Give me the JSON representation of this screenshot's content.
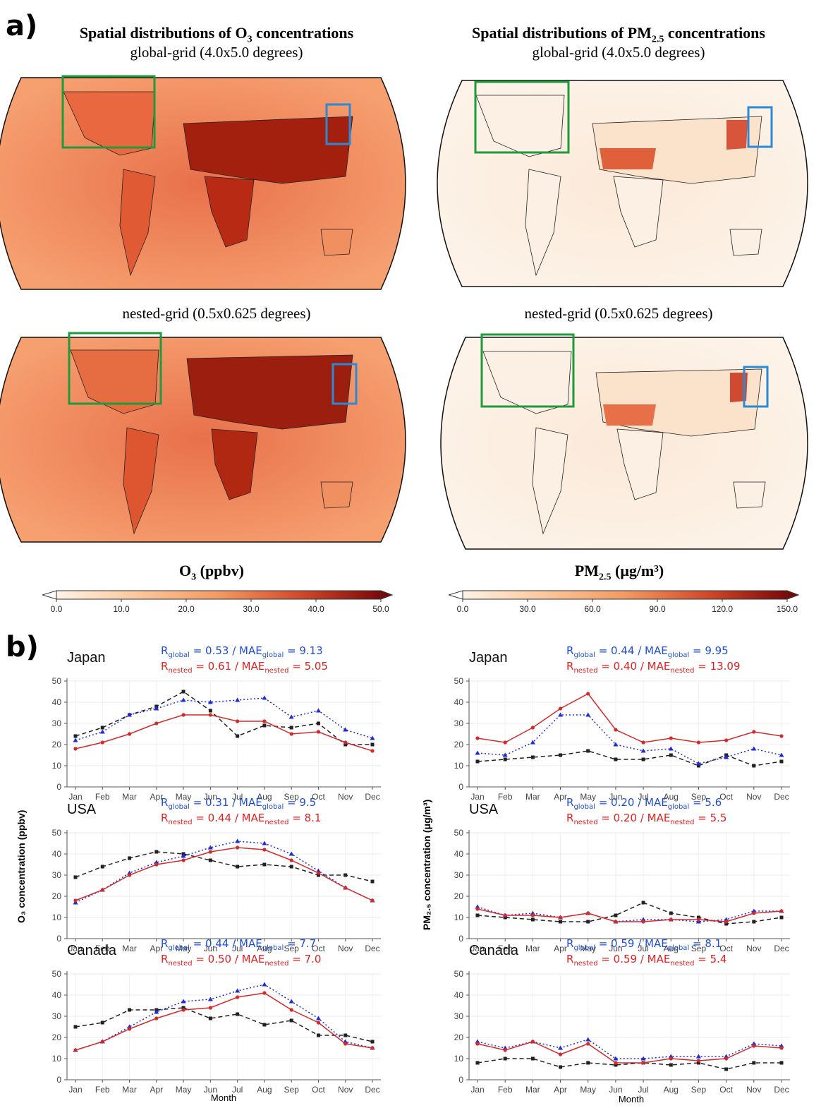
{
  "panel_labels": [
    "a)",
    "b)"
  ],
  "maps": {
    "o3": {
      "title_main": "Spatial distributions of O",
      "title_sub": "3",
      "title_rest": " concentrations",
      "global_label": "global-grid (4.0x5.0 degrees)",
      "nested_label": "nested-grid (0.5x0.625 degrees)",
      "colorbar_label_main": "O",
      "colorbar_label_sub": "3",
      "colorbar_label_rest": " (ppbv)",
      "colorbar_ticks": [
        "0.0",
        "10.0",
        "20.0",
        "30.0",
        "40.0",
        "50.0"
      ]
    },
    "pm": {
      "title_main": "Spatial distributions of PM",
      "title_sub": "2.5",
      "title_rest": " concentrations",
      "global_label": "global-grid (4.0x5.0 degrees)",
      "nested_label": "nested-grid (0.5x0.625 degrees)",
      "colorbar_label_main": "PM",
      "colorbar_label_sub": "2.5",
      "colorbar_label_rest": " (μg/m³)",
      "colorbar_ticks": [
        "0.0",
        "30.0",
        "60.0",
        "90.0",
        "120.0",
        "150.0"
      ]
    },
    "colors": {
      "box_usa": "#1e9b3a",
      "box_japan": "#2a8ad6",
      "o3_low": "#fde3c8",
      "o3_high": "#8b0000",
      "pm_low": "#fdf3e8",
      "pm_high": "#b5200f"
    }
  },
  "series_colors": {
    "observed": "#222222",
    "global": "#1f2bd6",
    "nested": "#d42a2a"
  },
  "stat_colors": {
    "global": "#1f4fd6",
    "nested": "#e02020"
  },
  "axis_labels": {
    "o3_y": "O₃ concentration (ppbv)",
    "pm_y": "PM₂.₅ concentration (μg/m³)",
    "x": "Month"
  },
  "chart_data": [
    {
      "type": "line",
      "region": "Japan",
      "pollutant": "O3",
      "categories": [
        "Jan",
        "Feb",
        "Mar",
        "Apr",
        "May",
        "Jun",
        "Jul",
        "Aug",
        "Sep",
        "Oct",
        "Nov",
        "Dec"
      ],
      "ylim": [
        0,
        50
      ],
      "yticks": [
        0,
        10,
        20,
        30,
        40,
        50
      ],
      "stat_global": "R_global = 0.53 / MAE_global = 9.13",
      "stat_nested": "R_nested = 0.61 / MAE_nested = 5.05",
      "series": [
        {
          "key": "observed",
          "values": [
            24,
            28,
            34,
            38,
            45,
            36,
            24,
            29,
            28,
            30,
            20,
            20
          ]
        },
        {
          "key": "global",
          "values": [
            22,
            26,
            34,
            37,
            41,
            40,
            41,
            42,
            33,
            36,
            27,
            23
          ]
        },
        {
          "key": "nested",
          "values": [
            18,
            21,
            25,
            30,
            34,
            34,
            31,
            31,
            25,
            26,
            21,
            17
          ]
        }
      ]
    },
    {
      "type": "line",
      "region": "Japan",
      "pollutant": "PM2.5",
      "categories": [
        "Jan",
        "Feb",
        "Mar",
        "Apr",
        "May",
        "Jun",
        "Jul",
        "Aug",
        "Sep",
        "Oct",
        "Nov",
        "Dec"
      ],
      "ylim": [
        0,
        50
      ],
      "yticks": [
        0,
        10,
        20,
        30,
        40,
        50
      ],
      "stat_global": "R_global = 0.44 / MAE_global = 9.95",
      "stat_nested": "R_nested = 0.40 / MAE_nested = 13.09",
      "series": [
        {
          "key": "observed",
          "values": [
            12,
            13,
            14,
            15,
            17,
            13,
            13,
            15,
            10,
            15,
            10,
            12
          ]
        },
        {
          "key": "global",
          "values": [
            16,
            15,
            21,
            34,
            34,
            20,
            17,
            18,
            11,
            14,
            18,
            15
          ]
        },
        {
          "key": "nested",
          "values": [
            23,
            21,
            28,
            37,
            44,
            27,
            21,
            23,
            21,
            22,
            26,
            24
          ]
        }
      ]
    },
    {
      "type": "line",
      "region": "USA",
      "pollutant": "O3",
      "categories": [
        "Jan",
        "Feb",
        "Mar",
        "Apr",
        "May",
        "Jun",
        "Jul",
        "Aug",
        "Sep",
        "Oct",
        "Nov",
        "Dec"
      ],
      "ylim": [
        0,
        50
      ],
      "yticks": [
        0,
        10,
        20,
        30,
        40,
        50
      ],
      "stat_global": "R_global = 0.31 / MAE_global = 9.5",
      "stat_nested": "R_nested = 0.44 / MAE_nested = 8.1",
      "series": [
        {
          "key": "observed",
          "values": [
            29,
            34,
            38,
            41,
            40,
            37,
            34,
            35,
            34,
            30,
            30,
            27
          ]
        },
        {
          "key": "global",
          "values": [
            17,
            23,
            31,
            36,
            39,
            43,
            46,
            45,
            40,
            32,
            24,
            18
          ]
        },
        {
          "key": "nested",
          "values": [
            18,
            23,
            30,
            35,
            37,
            41,
            43,
            42,
            37,
            31,
            24,
            18
          ]
        }
      ]
    },
    {
      "type": "line",
      "region": "USA",
      "pollutant": "PM2.5",
      "categories": [
        "Jan",
        "Feb",
        "Mar",
        "Apr",
        "May",
        "Jun",
        "Jul",
        "Aug",
        "Sep",
        "Oct",
        "Nov",
        "Dec"
      ],
      "ylim": [
        0,
        50
      ],
      "yticks": [
        0,
        10,
        20,
        30,
        40,
        50
      ],
      "stat_global": "R_global = 0.20 / MAE_global = 5.6",
      "stat_nested": "R_nested = 0.20 / MAE_nested = 5.5",
      "series": [
        {
          "key": "observed",
          "values": [
            11,
            10,
            9,
            8,
            8,
            11,
            17,
            12,
            10,
            7,
            8,
            10
          ]
        },
        {
          "key": "global",
          "values": [
            15,
            11,
            12,
            10,
            12,
            8,
            9,
            9,
            8,
            9,
            13,
            13
          ]
        },
        {
          "key": "nested",
          "values": [
            14,
            11,
            11,
            10,
            12,
            8,
            8,
            9,
            9,
            8,
            12,
            13
          ]
        }
      ]
    },
    {
      "type": "line",
      "region": "Canada",
      "pollutant": "O3",
      "categories": [
        "Jan",
        "Feb",
        "Mar",
        "Apr",
        "May",
        "Jun",
        "Jul",
        "Aug",
        "Sep",
        "Oct",
        "Nov",
        "Dec"
      ],
      "ylim": [
        0,
        50
      ],
      "yticks": [
        0,
        10,
        20,
        30,
        40,
        50
      ],
      "stat_global": "R_global = 0.44 / MAE_global = 7.7",
      "stat_nested": "R_nested = 0.50 / MAE_nested = 7.0",
      "series": [
        {
          "key": "observed",
          "values": [
            25,
            27,
            33,
            33,
            34,
            29,
            31,
            26,
            28,
            21,
            21,
            18
          ]
        },
        {
          "key": "global",
          "values": [
            14,
            18,
            25,
            32,
            37,
            38,
            42,
            45,
            37,
            29,
            18,
            15
          ]
        },
        {
          "key": "nested",
          "values": [
            14,
            18,
            24,
            29,
            33,
            34,
            39,
            41,
            33,
            27,
            17,
            15
          ]
        }
      ]
    },
    {
      "type": "line",
      "region": "Canada",
      "pollutant": "PM2.5",
      "categories": [
        "Jan",
        "Feb",
        "Mar",
        "Apr",
        "May",
        "Jun",
        "Jul",
        "Aug",
        "Sep",
        "Oct",
        "Nov",
        "Dec"
      ],
      "ylim": [
        0,
        50
      ],
      "yticks": [
        0,
        10,
        20,
        30,
        40,
        50
      ],
      "stat_global": "R_global = 0.59 / MAE_global = 8.1",
      "stat_nested": "R_nested = 0.59 / MAE_nested = 5.4",
      "series": [
        {
          "key": "observed",
          "values": [
            8,
            10,
            10,
            6,
            8,
            7,
            8,
            7,
            8,
            5,
            8,
            8
          ]
        },
        {
          "key": "global",
          "values": [
            18,
            15,
            18,
            15,
            19,
            10,
            10,
            11,
            11,
            11,
            17,
            16
          ]
        },
        {
          "key": "nested",
          "values": [
            17,
            14,
            18,
            12,
            17,
            8,
            8,
            10,
            9,
            10,
            16,
            15
          ]
        }
      ]
    }
  ]
}
